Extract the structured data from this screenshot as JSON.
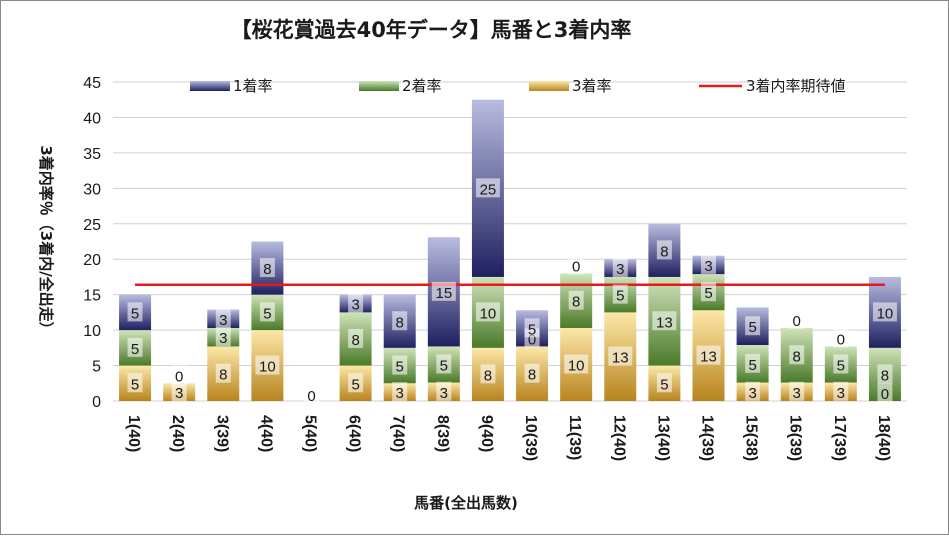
{
  "chart_data": {
    "type": "bar",
    "stacked": true,
    "title": "【桜花賞過去40年データ】馬番と3着内率",
    "xlabel": "馬番(全出馬数)",
    "ylabel": "3着内率％（3着内/全出走）",
    "ylim": [
      0,
      45
    ],
    "yticks": [
      0,
      5,
      10,
      15,
      20,
      25,
      30,
      35,
      40,
      45
    ],
    "legend_position": "top",
    "categories": [
      "1(40)",
      "2(40)",
      "3(39)",
      "4(40)",
      "5(40)",
      "6(40)",
      "7(40)",
      "8(39)",
      "9(40)",
      "10(39)",
      "11(39)",
      "12(40)",
      "13(40)",
      "14(39)",
      "15(38)",
      "16(39)",
      "17(39)",
      "18(40)"
    ],
    "series": [
      {
        "name": "3着率",
        "values": [
          5.0,
          2.5,
          7.7,
          10.0,
          0,
          5.0,
          2.5,
          2.6,
          7.5,
          7.7,
          10.3,
          12.5,
          5.0,
          12.8,
          2.6,
          2.6,
          2.6,
          0
        ],
        "labels": [
          "5",
          "3",
          "8",
          "10",
          "0",
          "5",
          "3",
          "3",
          "8",
          "8",
          "10",
          "13",
          "5",
          "13",
          "3",
          "3",
          "3",
          "0"
        ]
      },
      {
        "name": "2着率",
        "values": [
          5.0,
          0,
          2.6,
          5.0,
          0,
          7.5,
          5.0,
          5.1,
          10.0,
          0,
          7.7,
          5.0,
          12.5,
          5.1,
          5.3,
          7.7,
          5.1,
          7.5
        ],
        "labels": [
          "5",
          "0",
          "3",
          "5",
          "",
          "8",
          "5",
          "5",
          "10",
          "0",
          "8",
          "5",
          "13",
          "5",
          "5",
          "8",
          "5",
          "8"
        ]
      },
      {
        "name": "1着率",
        "values": [
          5.0,
          0,
          2.6,
          7.5,
          0,
          2.5,
          7.5,
          15.4,
          25.0,
          5.1,
          0,
          2.5,
          7.5,
          2.6,
          5.3,
          0,
          0,
          10.0
        ],
        "labels": [
          "5",
          "",
          "3",
          "8",
          "",
          "3",
          "8",
          "15",
          "25",
          "5",
          "0",
          "3",
          "8",
          "3",
          "5",
          "0",
          "0",
          "10"
        ]
      }
    ],
    "expected_line": {
      "name": "3着内率期待値",
      "value": 16.4
    }
  },
  "colors": {
    "s1_dark": "#1f2060",
    "s1_light": "#b9bce0",
    "s2_dark": "#4a7a2a",
    "s2_light": "#cfe3b8",
    "s3_dark": "#b8841e",
    "s3_light": "#fce8a8",
    "expected": "#e8191e",
    "grid": "#d0d0d0"
  }
}
